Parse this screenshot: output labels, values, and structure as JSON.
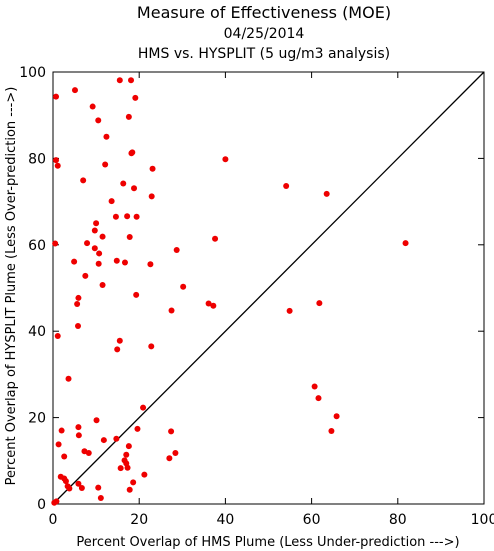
{
  "chart_data": {
    "type": "scatter",
    "title": "Measure of Effectiveness (MOE)",
    "date": "04/25/2014",
    "subtitle": "HMS vs. HYSPLIT  (5 ug/m3 analysis)",
    "xlabel": "Percent Overlap of HMS Plume (Less Under-prediction --->)",
    "ylabel": "Percent Overlap of HYSPLIT Plume (Less Over-prediction --->)",
    "xlim": [
      0,
      100
    ],
    "ylim": [
      0,
      100
    ],
    "xticks": [
      0,
      20,
      40,
      60,
      80,
      100
    ],
    "yticks": [
      0,
      20,
      40,
      60,
      80,
      100
    ],
    "grid": false,
    "reference_line": "y = x",
    "marker_color": "#ee0000",
    "points": [
      [
        0.7,
        94.3
      ],
      [
        0.7,
        79.6
      ],
      [
        1.1,
        78.3
      ],
      [
        0.5,
        60.3
      ],
      [
        1.1,
        38.9
      ],
      [
        0.3,
        0.3
      ],
      [
        0.8,
        0.6
      ],
      [
        1.3,
        13.8
      ],
      [
        2.0,
        17.0
      ],
      [
        1.8,
        6.3
      ],
      [
        2.6,
        11.0
      ],
      [
        2.6,
        5.9
      ],
      [
        3.0,
        5.3
      ],
      [
        3.4,
        4.1
      ],
      [
        3.8,
        3.6
      ],
      [
        3.6,
        29.0
      ],
      [
        5.1,
        95.8
      ],
      [
        4.9,
        56.1
      ],
      [
        5.6,
        46.3
      ],
      [
        5.8,
        41.2
      ],
      [
        5.9,
        47.7
      ],
      [
        6.0,
        15.9
      ],
      [
        5.9,
        17.8
      ],
      [
        5.9,
        4.7
      ],
      [
        6.7,
        3.7
      ],
      [
        7.3,
        12.2
      ],
      [
        7.0,
        74.9
      ],
      [
        7.5,
        52.8
      ],
      [
        7.9,
        60.4
      ],
      [
        8.3,
        11.8
      ],
      [
        9.2,
        92.0
      ],
      [
        9.7,
        59.2
      ],
      [
        9.7,
        63.3
      ],
      [
        10.0,
        65.0
      ],
      [
        10.1,
        19.4
      ],
      [
        10.5,
        88.8
      ],
      [
        10.6,
        55.6
      ],
      [
        10.5,
        3.8
      ],
      [
        10.7,
        58.0
      ],
      [
        11.1,
        1.4
      ],
      [
        11.5,
        50.7
      ],
      [
        11.5,
        61.9
      ],
      [
        11.8,
        14.8
      ],
      [
        12.1,
        78.6
      ],
      [
        12.4,
        85.0
      ],
      [
        13.6,
        70.1
      ],
      [
        14.7,
        15.1
      ],
      [
        14.6,
        66.5
      ],
      [
        14.8,
        56.3
      ],
      [
        14.9,
        35.8
      ],
      [
        15.5,
        37.8
      ],
      [
        15.5,
        98.1
      ],
      [
        15.7,
        8.3
      ],
      [
        16.3,
        74.2
      ],
      [
        16.6,
        10.1
      ],
      [
        16.7,
        55.9
      ],
      [
        17.0,
        11.4
      ],
      [
        17.0,
        9.4
      ],
      [
        17.2,
        66.6
      ],
      [
        17.3,
        8.4
      ],
      [
        17.6,
        13.4
      ],
      [
        17.8,
        61.8
      ],
      [
        17.6,
        89.6
      ],
      [
        17.8,
        3.3
      ],
      [
        18.1,
        98.1
      ],
      [
        18.2,
        81.2
      ],
      [
        18.4,
        81.4
      ],
      [
        18.6,
        5.0
      ],
      [
        18.8,
        73.1
      ],
      [
        19.1,
        94.0
      ],
      [
        19.4,
        66.5
      ],
      [
        19.3,
        48.4
      ],
      [
        19.6,
        17.4
      ],
      [
        20.9,
        22.3
      ],
      [
        21.2,
        6.8
      ],
      [
        22.6,
        55.5
      ],
      [
        22.8,
        36.5
      ],
      [
        22.9,
        71.2
      ],
      [
        23.1,
        77.6
      ],
      [
        27.0,
        10.6
      ],
      [
        27.4,
        16.8
      ],
      [
        27.5,
        44.8
      ],
      [
        28.4,
        11.8
      ],
      [
        28.7,
        58.8
      ],
      [
        30.2,
        50.3
      ],
      [
        36.1,
        46.4
      ],
      [
        37.2,
        45.9
      ],
      [
        37.6,
        61.4
      ],
      [
        40.0,
        79.8
      ],
      [
        54.1,
        73.6
      ],
      [
        54.9,
        44.7
      ],
      [
        60.7,
        27.2
      ],
      [
        61.6,
        24.5
      ],
      [
        61.8,
        46.5
      ],
      [
        63.5,
        71.8
      ],
      [
        64.6,
        16.9
      ],
      [
        65.8,
        20.3
      ],
      [
        81.8,
        60.4
      ]
    ]
  }
}
